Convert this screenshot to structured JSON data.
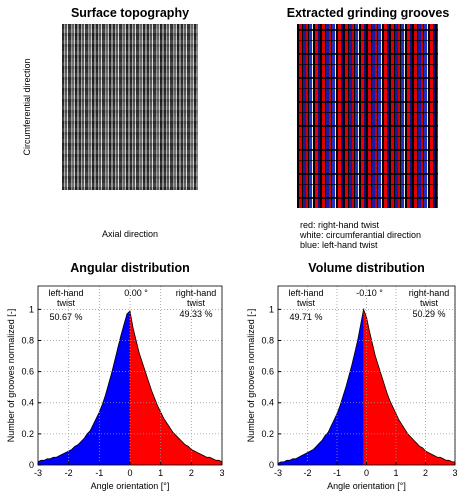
{
  "panels": [
    {
      "title": "Surface topography",
      "ylabel": "Circumferential direction",
      "xlabel": "Axial direction"
    },
    {
      "title": "Extracted grinding grooves",
      "legend": [
        "red: right-hand twist",
        "white: circumferantial direction",
        "blue: left-hand twist"
      ]
    }
  ],
  "chart_data": [
    {
      "type": "area",
      "title": "Angular distribution",
      "xlabel": "Angle orientation [°]",
      "ylabel": "Number of grooves normalized [-]",
      "left_label": [
        "left-hand",
        "twist"
      ],
      "left_share": {
        "value": 50.67,
        "label": "50.67 %"
      },
      "right_label": [
        "right-hand",
        "twist"
      ],
      "right_share": {
        "value": 49.33,
        "label": "49.33 %"
      },
      "split": {
        "value": 0,
        "label": "0.00 °"
      },
      "colors": [
        "#0000ff",
        "#ff0000"
      ],
      "grid": true,
      "xlim": [
        -3,
        3
      ],
      "ylim": [
        0,
        1.15
      ],
      "xticks": [
        -3,
        -2,
        -1,
        0,
        1,
        2,
        3
      ],
      "yticks": [
        0,
        0.2,
        0.4,
        0.6,
        0.8,
        1
      ],
      "x": [
        -3.0,
        -2.9,
        -2.8,
        -2.7,
        -2.6,
        -2.5,
        -2.4,
        -2.3,
        -2.2,
        -2.1,
        -2.0,
        -1.9,
        -1.8,
        -1.7,
        -1.6,
        -1.5,
        -1.4,
        -1.3,
        -1.2,
        -1.1,
        -1.0,
        -0.9,
        -0.8,
        -0.7,
        -0.6,
        -0.5,
        -0.4,
        -0.3,
        -0.2,
        -0.1,
        0,
        0.1,
        0.2,
        0.3,
        0.4,
        0.5,
        0.6,
        0.7,
        0.8,
        0.9,
        1.0,
        1.1,
        1.2,
        1.3,
        1.4,
        1.5,
        1.6,
        1.7,
        1.8,
        1.9,
        2.0,
        2.1,
        2.2,
        2.3,
        2.4,
        2.5,
        2.6,
        2.7,
        2.8,
        2.9,
        3.0
      ],
      "values": [
        0.02,
        0.03,
        0.03,
        0.04,
        0.04,
        0.05,
        0.05,
        0.06,
        0.07,
        0.08,
        0.09,
        0.1,
        0.12,
        0.13,
        0.15,
        0.17,
        0.2,
        0.22,
        0.26,
        0.3,
        0.34,
        0.39,
        0.45,
        0.52,
        0.59,
        0.67,
        0.75,
        0.83,
        0.9,
        0.97,
        0.99,
        0.88,
        0.8,
        0.72,
        0.66,
        0.6,
        0.54,
        0.48,
        0.43,
        0.38,
        0.34,
        0.3,
        0.27,
        0.24,
        0.21,
        0.19,
        0.17,
        0.15,
        0.13,
        0.12,
        0.1,
        0.09,
        0.08,
        0.07,
        0.06,
        0.05,
        0.05,
        0.04,
        0.03,
        0.03,
        0.02
      ]
    },
    {
      "type": "area",
      "title": "Volume distribution",
      "xlabel": "Angle orientation [°]",
      "ylabel": "Number of grooves normalized [-]",
      "left_label": [
        "left-hand",
        "twist"
      ],
      "left_share": {
        "value": 49.71,
        "label": "49.71 %"
      },
      "right_label": [
        "right-hand",
        "twist"
      ],
      "right_share": {
        "value": 50.29,
        "label": "50.29 %"
      },
      "split": {
        "value": -0.1,
        "label": "-0.10 °"
      },
      "colors": [
        "#0000ff",
        "#ff0000"
      ],
      "grid": true,
      "xlim": [
        -3,
        3
      ],
      "ylim": [
        0,
        1.15
      ],
      "xticks": [
        -3,
        -2,
        -1,
        0,
        1,
        2,
        3
      ],
      "yticks": [
        0,
        0.2,
        0.4,
        0.6,
        0.8,
        1
      ],
      "x": [
        -3.0,
        -2.9,
        -2.8,
        -2.7,
        -2.6,
        -2.5,
        -2.4,
        -2.3,
        -2.2,
        -2.1,
        -2.0,
        -1.9,
        -1.8,
        -1.7,
        -1.6,
        -1.5,
        -1.4,
        -1.3,
        -1.2,
        -1.1,
        -1.0,
        -0.9,
        -0.8,
        -0.7,
        -0.6,
        -0.5,
        -0.4,
        -0.3,
        -0.2,
        -0.1,
        0,
        0.1,
        0.2,
        0.3,
        0.4,
        0.5,
        0.6,
        0.7,
        0.8,
        0.9,
        1.0,
        1.1,
        1.2,
        1.3,
        1.4,
        1.5,
        1.6,
        1.7,
        1.8,
        1.9,
        2.0,
        2.1,
        2.2,
        2.3,
        2.4,
        2.5,
        2.6,
        2.7,
        2.8,
        2.9,
        3.0
      ],
      "values": [
        0.01,
        0.02,
        0.02,
        0.03,
        0.03,
        0.04,
        0.04,
        0.05,
        0.06,
        0.07,
        0.08,
        0.09,
        0.1,
        0.12,
        0.14,
        0.16,
        0.19,
        0.21,
        0.25,
        0.29,
        0.33,
        0.38,
        0.44,
        0.5,
        0.57,
        0.64,
        0.72,
        0.8,
        0.9,
        1.0,
        0.95,
        0.86,
        0.78,
        0.7,
        0.64,
        0.58,
        0.52,
        0.46,
        0.41,
        0.37,
        0.33,
        0.29,
        0.26,
        0.23,
        0.2,
        0.18,
        0.16,
        0.14,
        0.12,
        0.11,
        0.09,
        0.08,
        0.07,
        0.06,
        0.05,
        0.05,
        0.04,
        0.03,
        0.03,
        0.02,
        0.02
      ]
    }
  ]
}
